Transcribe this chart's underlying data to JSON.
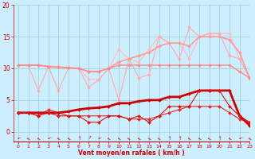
{
  "x": [
    0,
    1,
    2,
    3,
    4,
    5,
    6,
    7,
    8,
    9,
    10,
    11,
    12,
    13,
    14,
    15,
    16,
    17,
    18,
    19,
    20,
    21,
    22,
    23
  ],
  "series": [
    {
      "name": "upper_band_top",
      "color": "#ffbbbb",
      "lw": 0.8,
      "marker": "D",
      "ms": 2.0,
      "values": [
        10.5,
        10.5,
        10.5,
        10.3,
        10.2,
        10.1,
        10.0,
        8.3,
        8.2,
        10.0,
        13.0,
        11.5,
        11.0,
        13.0,
        15.0,
        14.0,
        14.0,
        11.5,
        15.0,
        15.5,
        15.5,
        15.5,
        11.5,
        8.5
      ]
    },
    {
      "name": "upper_band_zigzag",
      "color": "#ffaaaa",
      "lw": 0.8,
      "marker": "D",
      "ms": 2.0,
      "values": [
        10.5,
        10.5,
        6.5,
        10.3,
        6.5,
        10.1,
        10.0,
        7.0,
        8.2,
        10.0,
        5.0,
        11.5,
        8.5,
        9.0,
        15.0,
        14.0,
        11.5,
        16.5,
        15.0,
        15.5,
        15.5,
        12.0,
        11.5,
        8.5
      ]
    },
    {
      "name": "upper_mean_line",
      "color": "#ff9999",
      "lw": 1.2,
      "marker": "D",
      "ms": 2.0,
      "values": [
        10.5,
        10.5,
        10.5,
        10.3,
        10.2,
        10.1,
        10.0,
        9.5,
        9.5,
        10.0,
        11.0,
        11.5,
        12.0,
        12.5,
        13.5,
        14.0,
        14.0,
        13.5,
        15.0,
        15.0,
        15.0,
        14.5,
        12.5,
        8.5
      ]
    },
    {
      "name": "lower_flat",
      "color": "#ff8888",
      "lw": 1.0,
      "marker": "D",
      "ms": 2.0,
      "values": [
        10.5,
        10.5,
        10.5,
        10.3,
        10.2,
        10.1,
        10.0,
        9.5,
        9.5,
        10.0,
        10.5,
        10.5,
        10.5,
        10.5,
        10.5,
        10.5,
        10.5,
        10.5,
        10.5,
        10.5,
        10.5,
        10.5,
        9.5,
        8.5
      ]
    },
    {
      "name": "red_zigzag",
      "color": "#ee2222",
      "lw": 0.8,
      "marker": "D",
      "ms": 2.0,
      "values": [
        3.0,
        3.0,
        2.5,
        3.5,
        3.0,
        2.5,
        2.5,
        2.5,
        2.5,
        2.5,
        2.5,
        2.0,
        2.0,
        2.0,
        2.5,
        3.0,
        3.5,
        4.0,
        4.0,
        4.0,
        4.0,
        3.0,
        2.0,
        1.5
      ]
    },
    {
      "name": "red_thick",
      "color": "#cc0000",
      "lw": 2.0,
      "marker": "D",
      "ms": 2.0,
      "values": [
        3.0,
        3.0,
        3.0,
        3.0,
        3.0,
        3.2,
        3.5,
        3.7,
        3.8,
        4.0,
        4.5,
        4.5,
        4.8,
        5.0,
        5.0,
        5.5,
        5.5,
        6.0,
        6.5,
        6.5,
        6.5,
        6.5,
        2.5,
        1.0
      ]
    },
    {
      "name": "red_spike",
      "color": "#dd1111",
      "lw": 0.8,
      "marker": "D",
      "ms": 2.0,
      "values": [
        3.0,
        3.0,
        2.5,
        3.0,
        2.5,
        2.5,
        2.5,
        1.5,
        1.5,
        2.5,
        2.5,
        2.0,
        2.5,
        1.5,
        2.5,
        4.0,
        4.0,
        4.0,
        6.5,
        6.5,
        6.5,
        4.0,
        2.5,
        1.5
      ]
    }
  ],
  "xlabel": "Vent moyen/en rafales ( km/h )",
  "xlim": [
    -0.5,
    23
  ],
  "ylim": [
    -1.5,
    20
  ],
  "yticks": [
    0,
    5,
    10,
    15,
    20
  ],
  "xticks": [
    0,
    1,
    2,
    3,
    4,
    5,
    6,
    7,
    8,
    9,
    10,
    11,
    12,
    13,
    14,
    15,
    16,
    17,
    18,
    19,
    20,
    21,
    22,
    23
  ],
  "bg_color": "#cceeff",
  "grid_color": "#99cccc",
  "xlabel_color": "#cc0000",
  "tick_color": "#cc0000",
  "arrow_color": "#cc0000",
  "spine_color": "#cc0000"
}
